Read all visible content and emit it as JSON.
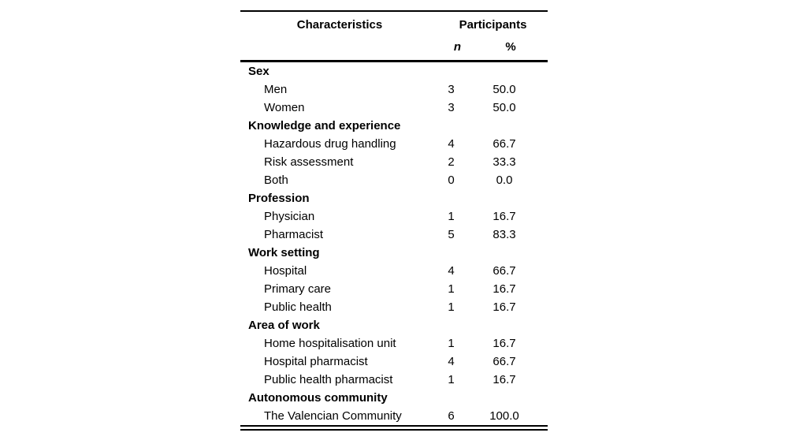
{
  "page": {
    "background_color": "#ffffff",
    "text_color": "#000000",
    "rule_color": "#000000"
  },
  "table": {
    "header": {
      "characteristics_label": "Characteristics",
      "participants_label": "Participants",
      "n_label": "n",
      "percent_label": "%"
    },
    "rows": [
      {
        "type": "section",
        "label": "Sex",
        "n": "",
        "pct": ""
      },
      {
        "type": "item",
        "label": "Men",
        "n": "3",
        "pct": "50.0"
      },
      {
        "type": "item",
        "label": "Women",
        "n": "3",
        "pct": "50.0"
      },
      {
        "type": "section",
        "label": "Knowledge and experience",
        "n": "",
        "pct": ""
      },
      {
        "type": "item",
        "label": "Hazardous drug handling",
        "n": "4",
        "pct": "66.7"
      },
      {
        "type": "item",
        "label": "Risk assessment",
        "n": "2",
        "pct": "33.3"
      },
      {
        "type": "item",
        "label": "Both",
        "n": "0",
        "pct": "0.0"
      },
      {
        "type": "section",
        "label": "Profession",
        "n": "",
        "pct": ""
      },
      {
        "type": "item",
        "label": "Physician",
        "n": "1",
        "pct": "16.7"
      },
      {
        "type": "item",
        "label": "Pharmacist",
        "n": "5",
        "pct": "83.3"
      },
      {
        "type": "section",
        "label": "Work setting",
        "n": "",
        "pct": ""
      },
      {
        "type": "item",
        "label": "Hospital",
        "n": "4",
        "pct": "66.7"
      },
      {
        "type": "item",
        "label": "Primary care",
        "n": "1",
        "pct": "16.7"
      },
      {
        "type": "item",
        "label": "Public health",
        "n": "1",
        "pct": "16.7"
      },
      {
        "type": "section",
        "label": "Area of work",
        "n": "",
        "pct": ""
      },
      {
        "type": "item",
        "label": "Home hospitalisation unit",
        "n": "1",
        "pct": "16.7"
      },
      {
        "type": "item",
        "label": "Hospital pharmacist",
        "n": "4",
        "pct": "66.7"
      },
      {
        "type": "item",
        "label": "Public health pharmacist",
        "n": "1",
        "pct": "16.7"
      },
      {
        "type": "section",
        "label": "Autonomous community",
        "n": "",
        "pct": ""
      },
      {
        "type": "item",
        "label": "The Valencian Community",
        "n": "6",
        "pct": "100.0"
      }
    ]
  }
}
